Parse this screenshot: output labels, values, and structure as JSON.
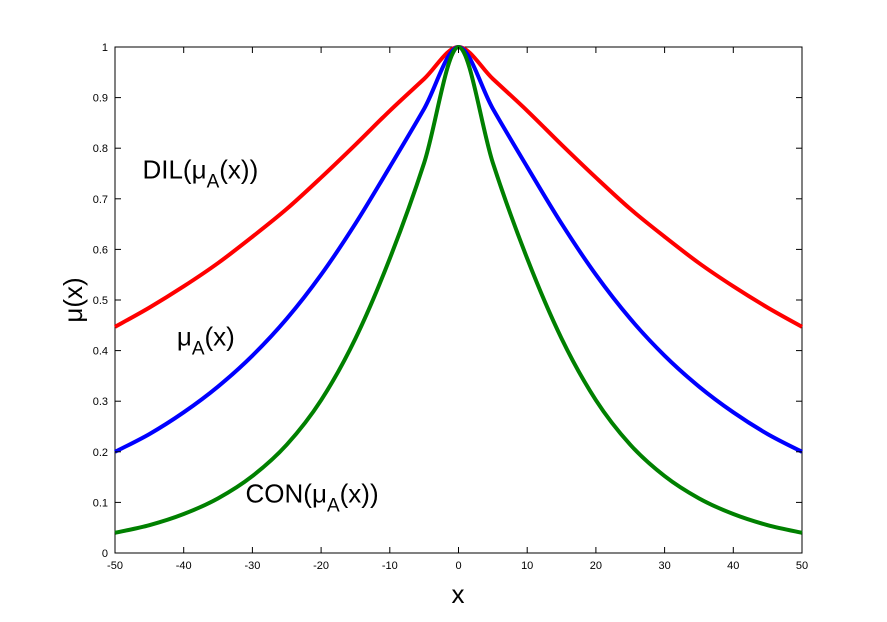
{
  "chart_data": {
    "type": "line",
    "xlabel": "x",
    "ylabel": "μ(x)",
    "xlim": [
      -50,
      50
    ],
    "ylim": [
      0,
      1
    ],
    "grid": false,
    "x_ticks": [
      -50,
      -40,
      -30,
      -20,
      -10,
      0,
      10,
      20,
      30,
      40,
      50
    ],
    "y_ticks": [
      0,
      0.1,
      0.2,
      0.3,
      0.4,
      0.5,
      0.6,
      0.7,
      0.8,
      0.9,
      1
    ],
    "x_tick_labels": [
      "-50",
      "-40",
      "-30",
      "-20",
      "-10",
      "0",
      "10",
      "20",
      "30",
      "40",
      "50"
    ],
    "y_tick_labels": [
      "0",
      "0.1",
      "0.2",
      "0.3",
      "0.4",
      "0.5",
      "0.6",
      "0.7",
      "0.8",
      "0.9",
      "1"
    ],
    "x": [
      -50,
      -45,
      -40,
      -35,
      -30,
      -25,
      -20,
      -15,
      -10,
      -5,
      0,
      5,
      10,
      15,
      20,
      25,
      30,
      35,
      40,
      45,
      50
    ],
    "series": [
      {
        "color": "#ff0000",
        "values": [
          0.447,
          0.485,
          0.527,
          0.573,
          0.625,
          0.68,
          0.742,
          0.807,
          0.874,
          0.937,
          1.0,
          0.937,
          0.874,
          0.807,
          0.742,
          0.68,
          0.625,
          0.573,
          0.527,
          0.485,
          0.447
        ]
      },
      {
        "color": "#0000ff",
        "values": [
          0.2,
          0.235,
          0.278,
          0.329,
          0.39,
          0.463,
          0.55,
          0.651,
          0.763,
          0.878,
          1.0,
          0.878,
          0.763,
          0.651,
          0.55,
          0.463,
          0.39,
          0.329,
          0.278,
          0.235,
          0.2
        ]
      },
      {
        "color": "#008000",
        "values": [
          0.04,
          0.055,
          0.077,
          0.108,
          0.152,
          0.214,
          0.302,
          0.424,
          0.582,
          0.771,
          1.0,
          0.771,
          0.582,
          0.424,
          0.302,
          0.214,
          0.152,
          0.108,
          0.077,
          0.055,
          0.04
        ]
      }
    ],
    "annotations": [
      {
        "main": "DIL(μ",
        "sub": "A",
        "tail": "(x))",
        "x": -46,
        "y": 0.74
      },
      {
        "main": "μ",
        "sub": "A",
        "tail": "(x)",
        "x": -41,
        "y": 0.41
      },
      {
        "main": "CON(μ",
        "sub": "A",
        "tail": "(x))",
        "x": -31,
        "y": 0.1
      }
    ]
  }
}
